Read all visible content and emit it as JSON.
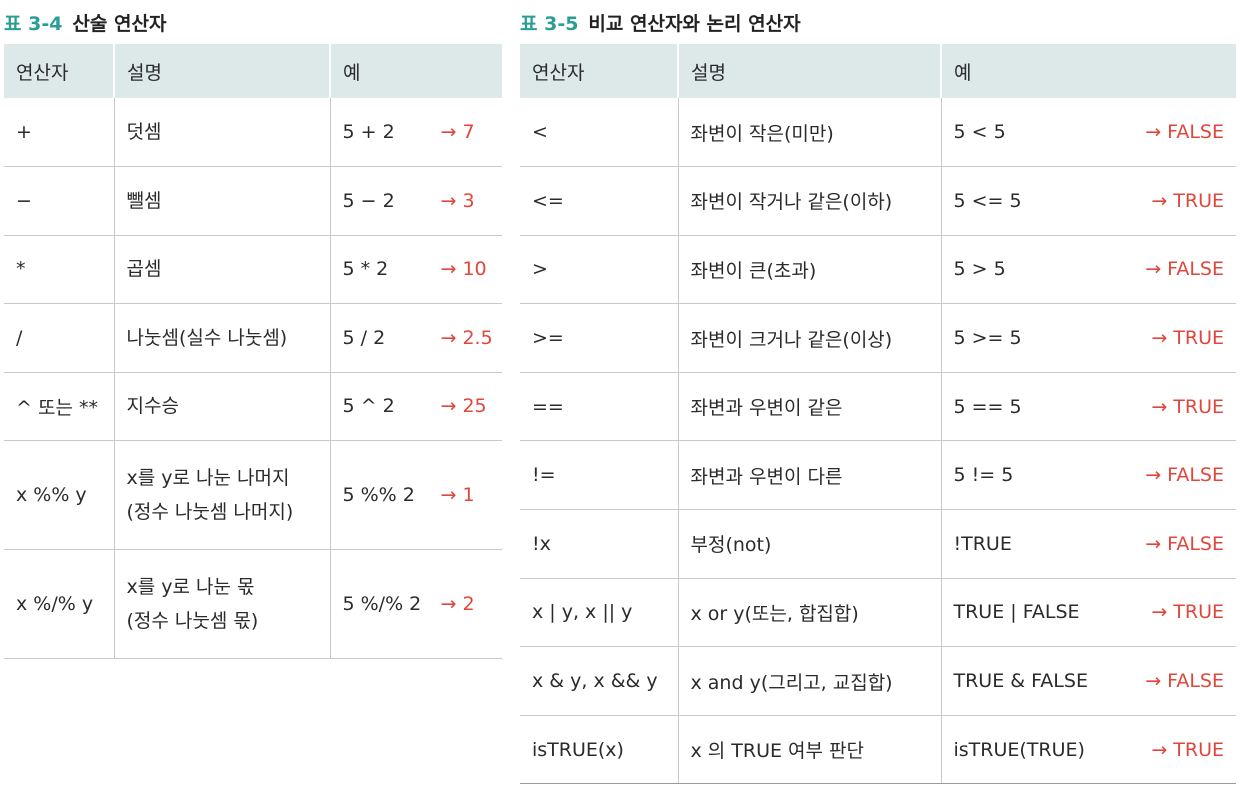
{
  "table_left": {
    "num": "표 3-4",
    "title": "산술 연산자",
    "headers": [
      "연산자",
      "설명",
      "예"
    ],
    "rows": [
      {
        "op": "+",
        "desc": [
          "덧셈"
        ],
        "expr": "5 + 2",
        "result": "→ 7"
      },
      {
        "op": "−",
        "desc": [
          "뺄셈"
        ],
        "expr": "5 − 2",
        "result": "→ 3"
      },
      {
        "op": "*",
        "desc": [
          "곱셈"
        ],
        "expr": "5 * 2",
        "result": "→ 10"
      },
      {
        "op": "/",
        "desc": [
          "나눗셈(실수 나눗셈)"
        ],
        "expr": "5 / 2",
        "result": "→ 2.5"
      },
      {
        "op": "^ 또는 **",
        "desc": [
          "지수승"
        ],
        "expr": "5 ^ 2",
        "result": "→ 25"
      },
      {
        "op": "x %% y",
        "desc": [
          "x를 y로 나눈 나머지",
          "(정수 나눗셈 나머지)"
        ],
        "expr": "5 %% 2",
        "result": "→ 1"
      },
      {
        "op": "x %/% y",
        "desc": [
          "x를 y로 나눈 몫",
          "(정수 나눗셈 몫)"
        ],
        "expr": "5 %/% 2",
        "result": "→ 2"
      }
    ]
  },
  "table_right": {
    "num": "표 3-5",
    "title": "비교 연산자와 논리 연산자",
    "headers": [
      "연산자",
      "설명",
      "예"
    ],
    "rows": [
      {
        "op": "<",
        "desc": "좌변이 작은(미만)",
        "expr": "5 < 5",
        "result": "→ FALSE"
      },
      {
        "op": "<=",
        "desc": "좌변이 작거나 같은(이하)",
        "expr": "5 <= 5",
        "result": "→ TRUE"
      },
      {
        "op": ">",
        "desc": "좌변이 큰(초과)",
        "expr": "5 > 5",
        "result": "→ FALSE"
      },
      {
        "op": ">=",
        "desc": "좌변이 크거나 같은(이상)",
        "expr": "5 >= 5",
        "result": "→ TRUE"
      },
      {
        "op": "==",
        "desc": "좌변과 우변이 같은",
        "expr": "5 == 5",
        "result": "→ TRUE"
      },
      {
        "op": "!=",
        "desc": "좌변과 우변이 다른",
        "expr": "5 != 5",
        "result": "→ FALSE"
      },
      {
        "op": "!x",
        "desc": "부정(not)",
        "expr": "!TRUE",
        "result": "→ FALSE"
      },
      {
        "op": "x | y, x || y",
        "desc": "x or y(또는, 합집합)",
        "expr": "TRUE | FALSE",
        "result": "→ TRUE"
      },
      {
        "op": "x & y, x && y",
        "desc": "x and y(그리고, 교집합)",
        "expr": "TRUE & FALSE",
        "result": "→ FALSE"
      },
      {
        "op": "isTRUE(x)",
        "desc": "x 의 TRUE 여부 판단",
        "expr": "isTRUE(TRUE)",
        "result": "→ TRUE"
      }
    ]
  },
  "colors": {
    "accent": "#2a9d95",
    "header_bg": "#dde9e9",
    "result": "#e0473c"
  }
}
